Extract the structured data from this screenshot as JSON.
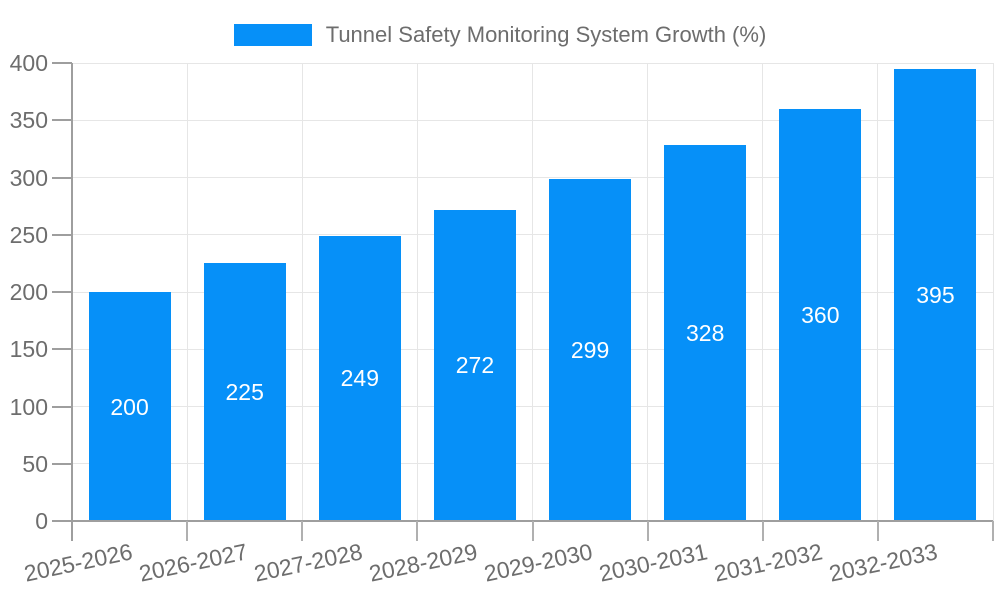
{
  "chart_data": {
    "type": "bar",
    "title": "Tunnel Safety Monitoring System Growth (%)",
    "legend": {
      "position": "top-center",
      "entries": [
        "Tunnel Safety Monitoring System Growth (%)"
      ]
    },
    "categories": [
      "2025-2026",
      "2026-2027",
      "2027-2028",
      "2028-2029",
      "2029-2030",
      "2030-2031",
      "2031-2032",
      "2032-2033"
    ],
    "values": [
      200,
      225,
      249,
      272,
      299,
      328,
      360,
      395
    ],
    "xlabel": "",
    "ylabel": "",
    "ylim": [
      0,
      400
    ],
    "yticks": [
      0,
      50,
      100,
      150,
      200,
      250,
      300,
      350,
      400
    ],
    "grid": true,
    "bar_value_labels_visible": true,
    "x_label_rotation_deg": -12,
    "colors": {
      "bar": "#0690f8",
      "bar_value_label": "#ffffff",
      "axis_line": "#9e9e9e",
      "tick_mark": "#b0b0b0",
      "grid_line": "#e6e6e6",
      "label_text": "#6d6d6d",
      "background": "#ffffff"
    }
  }
}
